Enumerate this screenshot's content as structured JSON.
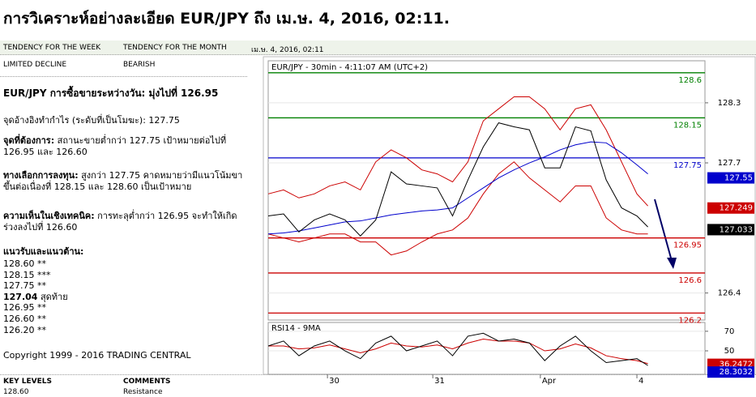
{
  "page": {
    "title": "การวิเคราะห์อย่างละเอียด EUR/JPY ถึง เม.ษ. 4, 2016, 02:11.",
    "header": {
      "week_label": "TENDENCY FOR THE WEEK",
      "month_label": "TENDENCY FOR THE MONTH",
      "date": "เม.ษ. 4, 2016, 02:11"
    },
    "tendency": {
      "week": "LIMITED DECLINE",
      "month": "BEARISH"
    },
    "summary": "EUR/JPY การซื้อขายระหว่างวัน: มุ่งไปที่ 126.95",
    "pivot": "จุดอ้างอิงทำกำไร (ระดับที่เป็นโมฆะ): 127.75",
    "notes": [
      {
        "label": "จุดที่ต้องการ:",
        "text": " สถานะขายต่ำกว่า 127.75 เป้าหมายต่อไปที่ 126.95 และ 126.60"
      },
      {
        "label": "ทางเลือกการลงทุน:",
        "text": " สูงกว่า 127.75 คาดหมายว่ามีแนวโน้มขาขึ้นต่อเนื่องที่ 128.15 และ 128.60 เป็นเป้าหมาย"
      },
      {
        "label": "ความเห็นในเชิงเทคนิค:",
        "text": " การทะลุต่ำกว่า 126.95 จะทำให้เกิดร่วงลงไปที่ 126.60"
      }
    ],
    "levels_heading": "แนวรับและแนวต้าน:",
    "levels": [
      {
        "level": "128.60",
        "note": " **"
      },
      {
        "level": "128.15",
        "note": " ***"
      },
      {
        "level": "127.75",
        "note": " **"
      },
      {
        "level": "127.04",
        "note": " สุดท้าย"
      },
      {
        "level": "126.95",
        "note": " **"
      },
      {
        "level": "126.60",
        "note": " **"
      },
      {
        "level": "126.20",
        "note": " **"
      }
    ],
    "copyright": "Copyright 1999 - 2016 TRADING CENTRAL",
    "footer": {
      "key_label": "KEY LEVELS",
      "comments_label": "COMMENTS",
      "key_value": "128.60",
      "comment": "Resistance"
    }
  },
  "chart_data": [
    {
      "type": "line",
      "title": "EUR/JPY - 30min - 4:11:07 AM (UTC+2)",
      "x": [
        0,
        7,
        14,
        21,
        28,
        35,
        42,
        49,
        56,
        63,
        70,
        77,
        84,
        91,
        98,
        105,
        112,
        119,
        126,
        133,
        140,
        147,
        154,
        161,
        168,
        173
      ],
      "series": [
        {
          "color": "#cc0000",
          "values": [
            127.39,
            127.43,
            127.35,
            127.39,
            127.47,
            127.51,
            127.43,
            127.71,
            127.83,
            127.75,
            127.63,
            127.59,
            127.51,
            127.71,
            128.12,
            128.24,
            128.36,
            128.36,
            128.24,
            128.03,
            128.24,
            128.28,
            128.03,
            127.71,
            127.39,
            127.27
          ]
        },
        {
          "color": "#cc0000",
          "values": [
            126.99,
            126.95,
            126.91,
            126.95,
            126.99,
            126.99,
            126.91,
            126.91,
            126.78,
            126.82,
            126.91,
            126.99,
            127.03,
            127.15,
            127.39,
            127.59,
            127.71,
            127.55,
            127.43,
            127.31,
            127.47,
            127.47,
            127.15,
            127.03,
            126.99,
            126.99
          ]
        },
        {
          "color": "#0000cc",
          "values": [
            126.99,
            127.0,
            127.02,
            127.05,
            127.08,
            127.11,
            127.12,
            127.15,
            127.18,
            127.2,
            127.22,
            127.23,
            127.25,
            127.35,
            127.45,
            127.55,
            127.63,
            127.7,
            127.76,
            127.83,
            127.88,
            127.91,
            127.9,
            127.8,
            127.68,
            127.59
          ]
        },
        {
          "color": "#000000",
          "values": [
            127.17,
            127.19,
            127.01,
            127.13,
            127.19,
            127.13,
            126.97,
            127.13,
            127.61,
            127.49,
            127.47,
            127.45,
            127.17,
            127.53,
            127.86,
            128.1,
            128.06,
            128.03,
            127.65,
            127.65,
            128.06,
            128.02,
            127.53,
            127.25,
            127.17,
            127.06
          ]
        }
      ],
      "xlim": [
        0,
        199
      ],
      "ylim": [
        126.13,
        128.72
      ],
      "yticks": [
        128.3,
        127.7,
        126.4
      ],
      "levels": [
        128.6,
        128.15,
        127.75,
        126.95,
        126.6,
        126.2
      ],
      "level_colors": [
        "#008000",
        "#008000",
        "#0000cc",
        "#cc0000",
        "#cc0000",
        "#cc0000"
      ],
      "tags": [
        127.55,
        127.249,
        127.033
      ],
      "tag_colors": [
        "#0000cc",
        "#cc0000",
        "#000000"
      ]
    },
    {
      "type": "line",
      "title": "RSI14 - 9MA",
      "x": [
        0,
        7,
        14,
        21,
        28,
        35,
        42,
        49,
        56,
        63,
        70,
        77,
        84,
        91,
        98,
        105,
        112,
        119,
        126,
        133,
        140,
        147,
        154,
        161,
        168,
        173
      ],
      "series": [
        {
          "color": "#cc0000",
          "values": [
            55,
            55,
            52,
            53,
            56,
            52,
            48,
            52,
            58,
            55,
            54,
            56,
            52,
            58,
            62,
            60,
            60,
            58,
            50,
            52,
            57,
            53,
            45,
            42,
            40,
            37
          ]
        },
        {
          "color": "#000000",
          "values": [
            55,
            60,
            45,
            55,
            60,
            50,
            42,
            58,
            65,
            50,
            55,
            60,
            45,
            65,
            68,
            60,
            62,
            58,
            40,
            55,
            65,
            50,
            38,
            40,
            42,
            35
          ]
        }
      ],
      "xlim": [
        0,
        199
      ],
      "ylim": [
        26,
        79
      ],
      "yticks": [
        70,
        50
      ],
      "xticks": [
        {
          "value": 27,
          "label": "30"
        },
        {
          "value": 75,
          "label": "31"
        },
        {
          "value": 124,
          "label": "Apr"
        },
        {
          "value": 168,
          "label": "4"
        }
      ],
      "tags": [
        36.2472,
        28.3032
      ],
      "tag_colors": [
        "#cc0000",
        "#0000cc"
      ]
    }
  ]
}
